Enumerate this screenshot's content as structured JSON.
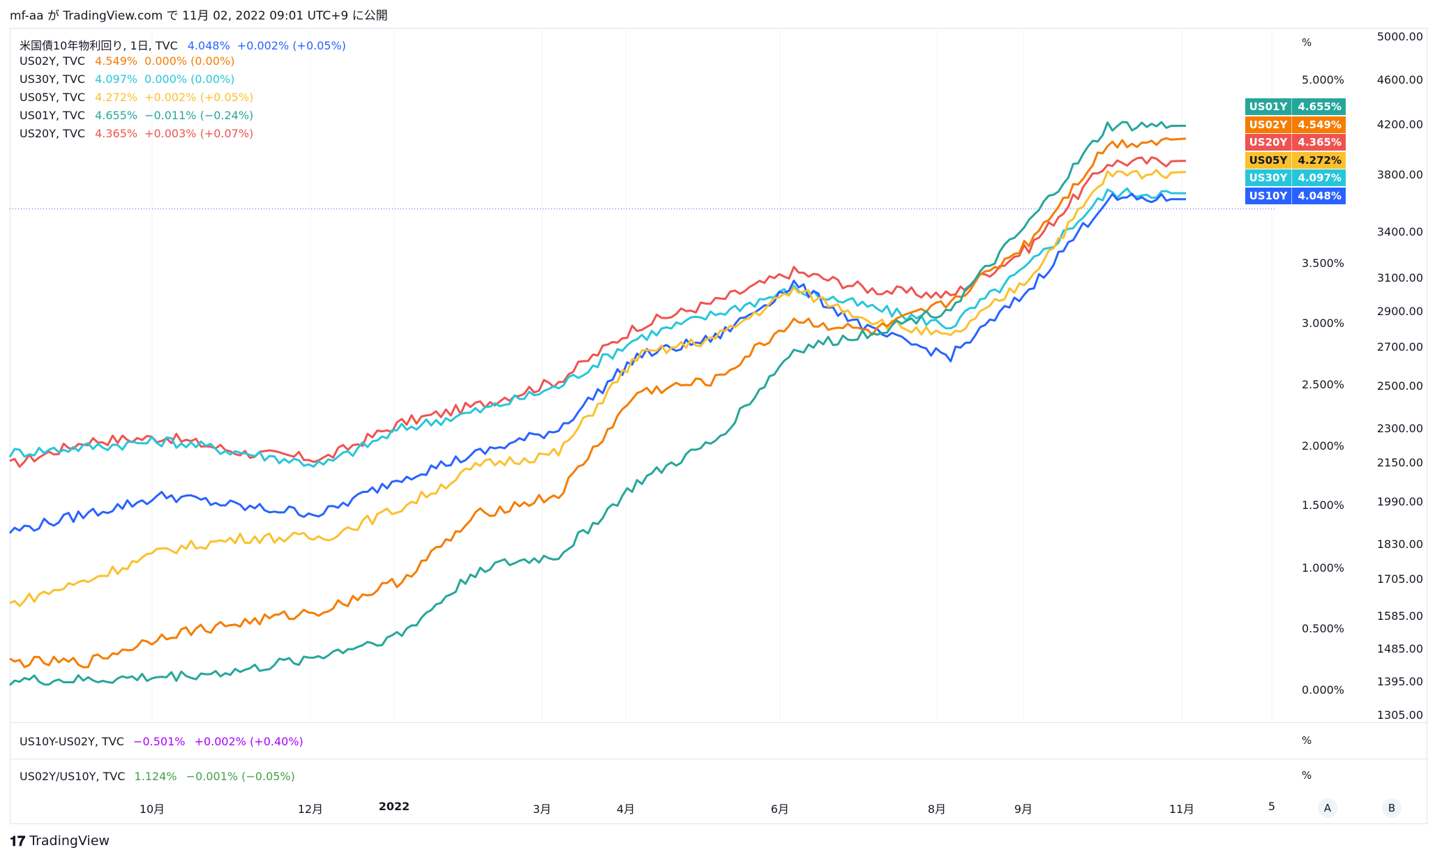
{
  "header": {
    "text": "mf-aa が TradingView.com で 11月 02, 2022 09:01 UTC+9 に公開"
  },
  "legend": [
    {
      "name": "米国債10年物利回り, 1日, TVC",
      "value": "4.048%",
      "change": "+0.002% (+0.05%)",
      "color": "#2962ff"
    },
    {
      "name": "US02Y, TVC",
      "value": "4.549%",
      "change": "0.000% (0.00%)",
      "color": "#f57c00"
    },
    {
      "name": "US30Y, TVC",
      "value": "4.097%",
      "change": "0.000% (0.00%)",
      "color": "#26c6da"
    },
    {
      "name": "US05Y, TVC",
      "value": "4.272%",
      "change": "+0.002% (+0.05%)",
      "color": "#fbc02d"
    },
    {
      "name": "US01Y, TVC",
      "value": "4.655%",
      "change": "−0.011% (−0.24%)",
      "color": "#26a69a"
    },
    {
      "name": "US20Y, TVC",
      "value": "4.365%",
      "change": "+0.003% (+0.07%)",
      "color": "#ef5350"
    }
  ],
  "badges": [
    {
      "name": "US01Y",
      "value": "4.655%",
      "color": "#26a69a"
    },
    {
      "name": "US02Y",
      "value": "4.549%",
      "color": "#f57c00"
    },
    {
      "name": "US20Y",
      "value": "4.365%",
      "color": "#ef5350"
    },
    {
      "name": "US05Y",
      "value": "4.272%",
      "color": "#fbc02d"
    },
    {
      "name": "US30Y",
      "value": "4.097%",
      "color": "#26c6da"
    },
    {
      "name": "US10Y",
      "value": "4.048%",
      "color": "#2962ff"
    }
  ],
  "panes": {
    "spread": {
      "name": "US10Y-US02Y, TVC",
      "value": "−0.501%",
      "change": "+0.002% (+0.40%)",
      "color": "#aa00ff",
      "unit": "%"
    },
    "ratio": {
      "name": "US02Y/US10Y, TVC",
      "value": "1.124%",
      "change": "−0.001% (−0.05%)",
      "color": "#43a047",
      "unit": "%"
    }
  },
  "main_unit": "%",
  "footer": {
    "brand": "TradingView"
  },
  "buttons": {
    "a": "A",
    "b": "B"
  },
  "chart_data": {
    "type": "line",
    "x": [
      "2021-08",
      "2021-09",
      "2021-10",
      "2021-11",
      "2021-12",
      "2022-01",
      "2022-02",
      "2022-03",
      "2022-04",
      "2022-05",
      "2022-06",
      "2022-07",
      "2022-08",
      "2022-09",
      "2022-10",
      "2022-11"
    ],
    "x_tick_labels": [
      "10月",
      "12月",
      "2022",
      "3月",
      "4月",
      "6月",
      "8月",
      "9月",
      "11月",
      "5"
    ],
    "y_pct_ticks": [
      "5.000%",
      "3.500%",
      "3.000%",
      "2.500%",
      "2.000%",
      "1.500%",
      "1.000%",
      "0.500%",
      "0.000%"
    ],
    "y_price_ticks": [
      "5000.00",
      "4600.00",
      "4200.00",
      "3800.00",
      "3400.00",
      "3100.00",
      "2900.00",
      "2700.00",
      "2500.00",
      "2300.00",
      "2150.00",
      "1990.00",
      "1830.00",
      "1705.00",
      "1585.00",
      "1485.00",
      "1395.00",
      "1305.00"
    ],
    "price_scale": "log",
    "series": [
      {
        "name": "US20Y",
        "color": "#ef5350",
        "values": [
          1.85,
          2.05,
          2.08,
          1.95,
          1.9,
          2.2,
          2.35,
          2.55,
          3.0,
          3.2,
          3.45,
          3.3,
          3.25,
          3.65,
          4.35,
          4.365
        ]
      },
      {
        "name": "US30Y",
        "color": "#26c6da",
        "values": [
          1.95,
          2.0,
          2.05,
          1.95,
          1.85,
          2.15,
          2.3,
          2.5,
          2.9,
          3.1,
          3.3,
          3.15,
          3.0,
          3.5,
          4.1,
          4.097
        ]
      },
      {
        "name": "US10Y",
        "color": "#2962ff",
        "values": [
          1.3,
          1.45,
          1.6,
          1.5,
          1.45,
          1.75,
          1.95,
          2.15,
          2.75,
          2.9,
          3.35,
          2.95,
          2.75,
          3.3,
          4.05,
          4.048
        ]
      },
      {
        "name": "US05Y",
        "color": "#fbc02d",
        "values": [
          0.7,
          0.9,
          1.15,
          1.25,
          1.25,
          1.5,
          1.85,
          1.95,
          2.75,
          2.9,
          3.3,
          3.05,
          2.9,
          3.4,
          4.25,
          4.272
        ]
      },
      {
        "name": "US02Y",
        "color": "#f57c00",
        "values": [
          0.22,
          0.22,
          0.45,
          0.55,
          0.65,
          0.9,
          1.45,
          1.6,
          2.45,
          2.55,
          3.05,
          2.95,
          3.2,
          3.7,
          4.5,
          4.549
        ]
      },
      {
        "name": "US01Y",
        "color": "#26a69a",
        "values": [
          0.07,
          0.07,
          0.1,
          0.15,
          0.28,
          0.45,
          1.0,
          1.1,
          1.7,
          2.05,
          2.8,
          2.95,
          3.15,
          3.85,
          4.65,
          4.655
        ]
      }
    ]
  }
}
